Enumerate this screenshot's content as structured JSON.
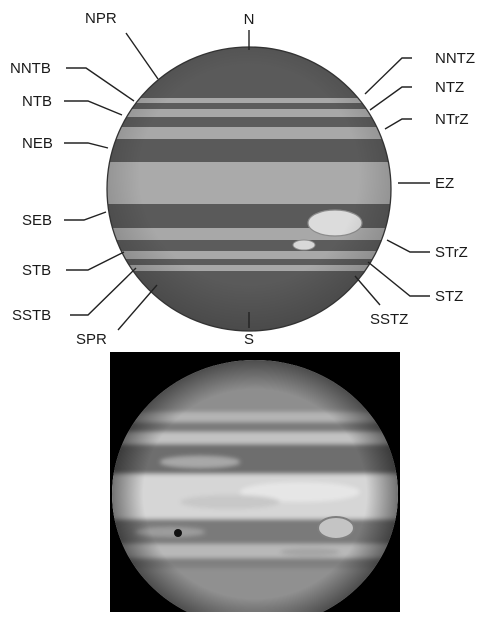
{
  "diagram": {
    "labels": {
      "N": "N",
      "S": "S",
      "NPR": "NPR",
      "NNTB": "NNTB",
      "NTB": "NTB",
      "NEB": "NEB",
      "SEB": "SEB",
      "STB": "STB",
      "SSTB": "SSTB",
      "SPR": "SPR",
      "NNTZ": "NNTZ",
      "NTZ": "NTZ",
      "NTrZ": "NTrZ",
      "EZ": "EZ",
      "STrZ": "STrZ",
      "STZ": "STZ",
      "SSTZ": "SSTZ"
    },
    "colors": {
      "dark_belt": "#585858",
      "light_zone": "#a6a6a6",
      "great_red_spot": "#dcdcdc"
    }
  }
}
